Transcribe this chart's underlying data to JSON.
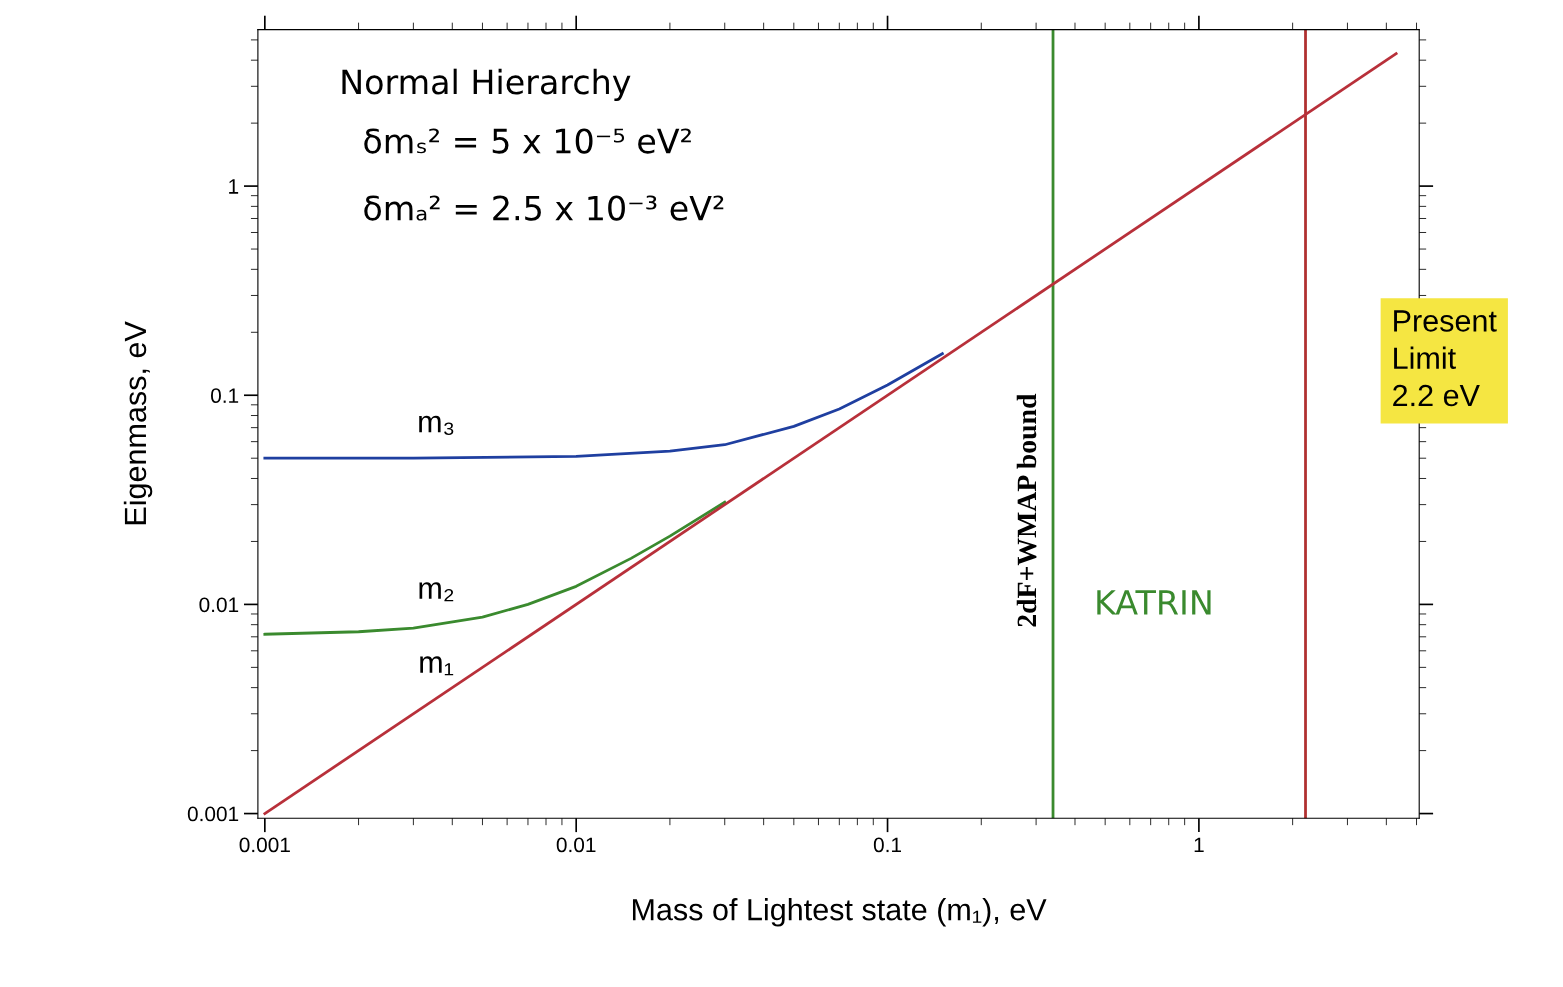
{
  "chart_data": {
    "type": "line",
    "xlabel": "Mass of Lightest state (m₁), eV",
    "ylabel": "Eigenmass, eV",
    "log": "xy",
    "xlim": [
      0.00095,
      5.1
    ],
    "ylim": [
      0.00095,
      5.6
    ],
    "xticks": [
      0.001,
      0.01,
      0.1,
      1
    ],
    "yticks": [
      0.001,
      0.01,
      0.1,
      1
    ],
    "grid": false,
    "legend": false,
    "series": [
      {
        "name": "m₃",
        "color": "#1f3fa0",
        "x": [
          0.001,
          0.003,
          0.01,
          0.02,
          0.03,
          0.05,
          0.07,
          0.1,
          0.15
        ],
        "values": [
          0.05,
          0.05,
          0.051,
          0.054,
          0.058,
          0.071,
          0.086,
          0.112,
          0.158
        ]
      },
      {
        "name": "m₂",
        "color": "#3a8a2e",
        "x": [
          0.001,
          0.002,
          0.003,
          0.005,
          0.007,
          0.01,
          0.015,
          0.02,
          0.03
        ],
        "values": [
          0.0072,
          0.0074,
          0.0077,
          0.0087,
          0.01,
          0.0122,
          0.0166,
          0.0212,
          0.0308
        ]
      },
      {
        "name": "m₁",
        "color": "#b8303a",
        "x": [
          0.001,
          4.3
        ],
        "values": [
          0.001,
          4.3
        ]
      }
    ],
    "ref_lines": [
      {
        "axis": "x",
        "value": 0.34,
        "label": "2dF+WMAP bound",
        "color": "#3a8a2e"
      },
      {
        "axis": "x",
        "value": 2.2,
        "label": "Present\nLimit\n2.2 eV",
        "color": "#b03030"
      }
    ],
    "annotations": [
      "Normal Hierarchy",
      "δmₛ² = 5 x 10⁻⁵ eV²",
      "δmₐ² = 2.5 x 10⁻³ eV²",
      "KATRIN"
    ]
  }
}
